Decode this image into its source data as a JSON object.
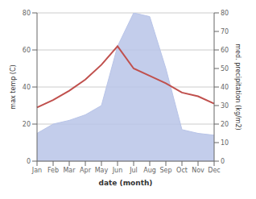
{
  "chart_data": {
    "type": "line",
    "xlabel": "date (month)",
    "ylabel": "max temp (C)",
    "y2label": "med. precipitation (kg/m2)",
    "categories": [
      "Jan",
      "Feb",
      "Mar",
      "Apr",
      "May",
      "Jun",
      "Jul",
      "Aug",
      "Sep",
      "Oct",
      "Nov",
      "Dec"
    ],
    "series": [
      {
        "type": "area",
        "axis": "y2",
        "color": "#b8c4e8",
        "values": [
          15,
          20,
          22,
          25,
          30,
          62,
          80,
          78,
          50,
          17,
          15,
          14
        ]
      },
      {
        "type": "line",
        "color": "#c0504d",
        "values": [
          29,
          33,
          38,
          44,
          52,
          62,
          50,
          46,
          42,
          37,
          35,
          31
        ]
      }
    ],
    "ylim": [
      0,
      80
    ],
    "yticks": [
      0,
      20,
      40,
      60,
      80
    ],
    "y2lim": [
      0,
      80
    ],
    "y2ticks": [
      0,
      10,
      20,
      30,
      40,
      50,
      60,
      70,
      80
    ],
    "grid": true
  }
}
